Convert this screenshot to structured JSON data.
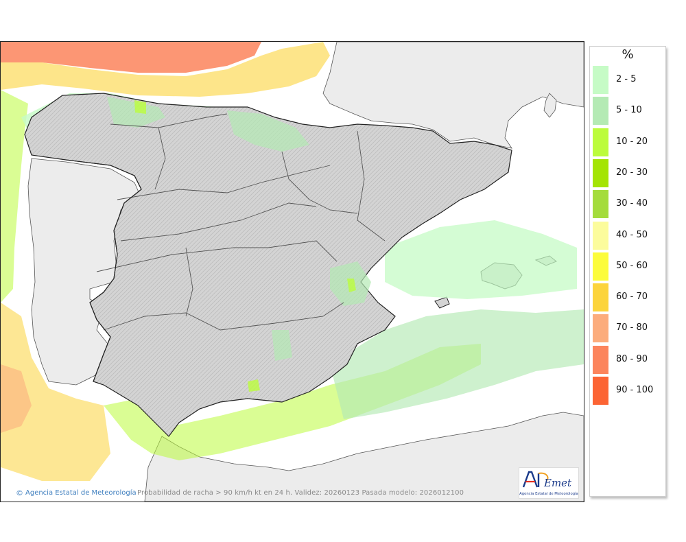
{
  "legend": {
    "title": "%",
    "items": [
      {
        "label": "2 - 5",
        "color": "#c6fbc6"
      },
      {
        "label": "5 - 10",
        "color": "#b4eab4"
      },
      {
        "label": "10 - 20",
        "color": "#bcfc3c"
      },
      {
        "label": "20 - 30",
        "color": "#a4e404"
      },
      {
        "label": "30 - 40",
        "color": "#a4dc3c"
      },
      {
        "label": "40 - 50",
        "color": "#fcfc9c"
      },
      {
        "label": "50 - 60",
        "color": "#fcfc3c"
      },
      {
        "label": "60 - 70",
        "color": "#fcd43c"
      },
      {
        "label": "70 - 80",
        "color": "#fcac7c"
      },
      {
        "label": "80 - 90",
        "color": "#fc845c"
      },
      {
        "label": "90 - 100",
        "color": "#fc6434"
      }
    ]
  },
  "map": {
    "credit": "Agencia Estatal de Meteorología",
    "caption": "Probabilidad de racha > 90 km/h kt en 24 h. Validez: 20260123 Pasada modelo: 2026012100",
    "logo_text": "AEmet",
    "logo_subtext": "Agencia Estatal de Meteorología",
    "colors": {
      "land": "#d9d9d9",
      "foreign_land": "#ececec",
      "sea": "#ffffff",
      "border": "#222222",
      "admin_border": "#777777"
    }
  }
}
